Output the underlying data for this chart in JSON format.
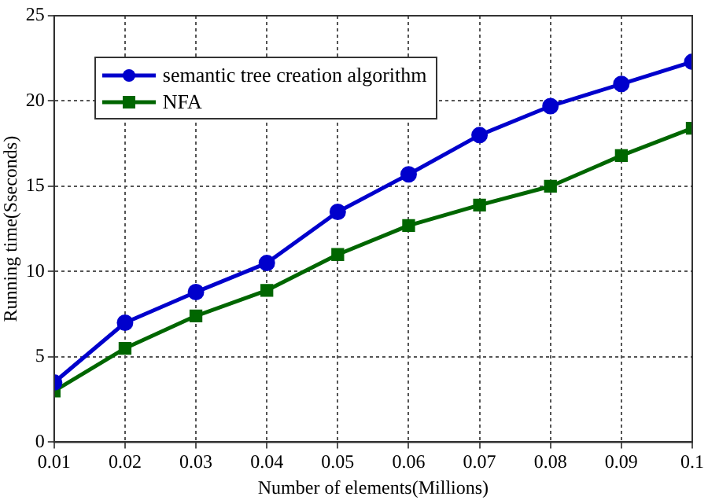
{
  "chart_data": {
    "type": "line",
    "xlabel": "Number of elements(Millions)",
    "ylabel": "Running time(Sseconds)",
    "x": [
      0.01,
      0.02,
      0.03,
      0.04,
      0.05,
      0.06,
      0.07,
      0.08,
      0.09,
      0.1
    ],
    "series": [
      {
        "name": "semantic tree creation algorithm",
        "color": "#0000cc",
        "marker": "circle",
        "values": [
          3.5,
          7,
          8.8,
          10.5,
          13.5,
          15.7,
          18,
          19.7,
          21,
          22.3
        ]
      },
      {
        "name": "NFA",
        "color": "#006600",
        "marker": "square",
        "values": [
          3,
          5.5,
          7.4,
          8.9,
          11,
          12.7,
          13.9,
          15,
          16.8,
          18.4
        ]
      }
    ],
    "xlim": [
      0.01,
      0.1
    ],
    "xticks": [
      0.01,
      0.02,
      0.03,
      0.04,
      0.05,
      0.06,
      0.07,
      0.08,
      0.09,
      0.1
    ],
    "ylim": [
      0,
      25
    ],
    "yticks": [
      0,
      5,
      10,
      15,
      20,
      25
    ],
    "grid": true,
    "legend": "top left",
    "line_style": "solid"
  }
}
